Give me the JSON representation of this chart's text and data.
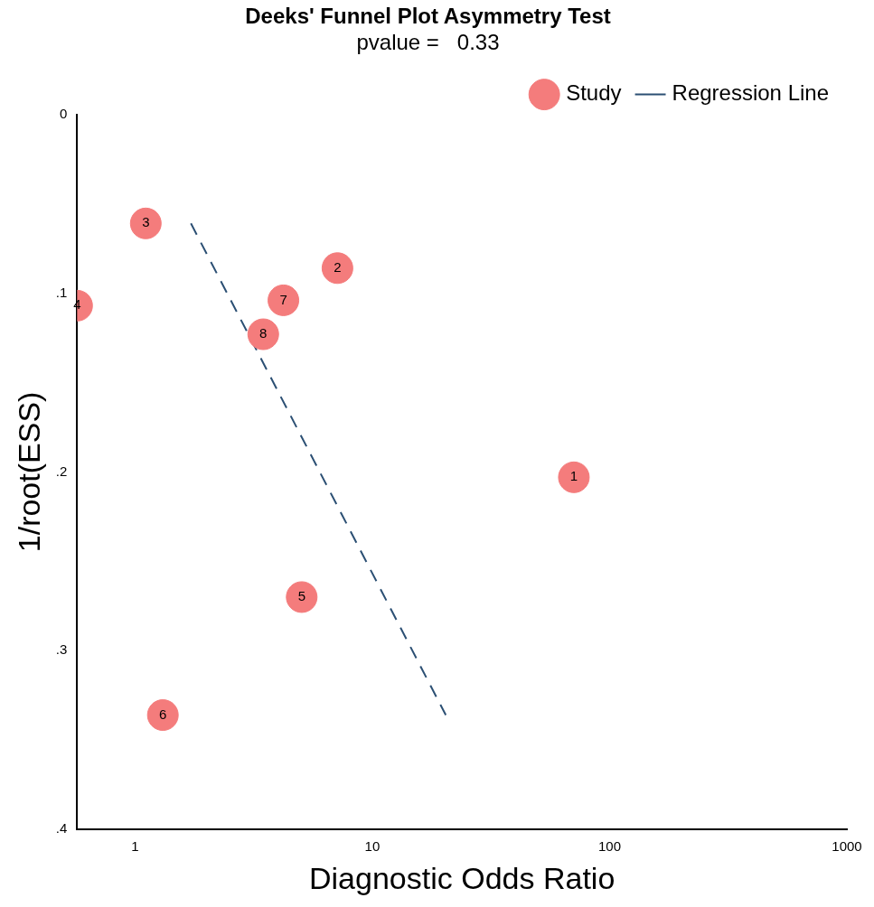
{
  "chart_data": {
    "type": "scatter",
    "title": "Deeks' Funnel Plot Asymmetry Test",
    "subtitle": "pvalue =   0.33",
    "xlabel": "Diagnostic Odds Ratio",
    "ylabel": "1/root(ESS)",
    "log": "x",
    "xlim": [
      0.57,
      1000
    ],
    "xticks": [
      1,
      10,
      100,
      1000
    ],
    "ylim": [
      0.4,
      0
    ],
    "yticks": [
      {
        "value": 0,
        "label": "0"
      },
      {
        "value": 0.1,
        "label": ".1"
      },
      {
        "value": 0.2,
        "label": ".2"
      },
      {
        "value": 0.3,
        "label": ".3"
      },
      {
        "value": 0.4,
        "label": ".4"
      }
    ],
    "grid": false,
    "legend": "top right",
    "series": [
      {
        "name": "Study",
        "marker": "circle",
        "color": "#f47c7c",
        "x": [
          70.7,
          7.13,
          1.11,
          0.57,
          5.04,
          1.31,
          4.22,
          3.47
        ],
        "values": [
          0.203,
          0.086,
          0.061,
          0.107,
          0.27,
          0.336,
          0.104,
          0.123
        ]
      },
      {
        "name": "Regression Line",
        "type": "line",
        "line_style": "dashed",
        "color": "#2b4f73",
        "x": [
          1.72,
          20.4
        ],
        "values": [
          0.061,
          0.336
        ]
      }
    ],
    "annotations": [
      {
        "text": "1",
        "x": 70.7,
        "y": 0.203
      },
      {
        "text": "2",
        "x": 7.13,
        "y": 0.086
      },
      {
        "text": "3",
        "x": 1.11,
        "y": 0.061
      },
      {
        "text": "4",
        "x": 0.57,
        "y": 0.107
      },
      {
        "text": "5",
        "x": 5.04,
        "y": 0.27
      },
      {
        "text": "6",
        "x": 1.31,
        "y": 0.336
      },
      {
        "text": "7",
        "x": 4.22,
        "y": 0.104
      },
      {
        "text": "8",
        "x": 3.47,
        "y": 0.123
      }
    ]
  }
}
